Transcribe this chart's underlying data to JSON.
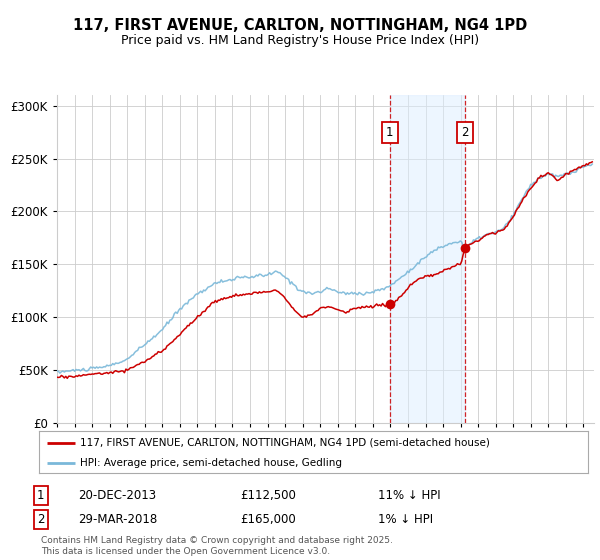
{
  "title1": "117, FIRST AVENUE, CARLTON, NOTTINGHAM, NG4 1PD",
  "title2": "Price paid vs. HM Land Registry's House Price Index (HPI)",
  "bg_color": "#ffffff",
  "plot_bg_color": "#ffffff",
  "grid_color": "#cccccc",
  "hpi_color": "#7ab8d9",
  "price_color": "#cc0000",
  "annotation1_date": "20-DEC-2013",
  "annotation1_price": 112500,
  "annotation1_text": "11% ↓ HPI",
  "annotation2_date": "29-MAR-2018",
  "annotation2_price": 165000,
  "annotation2_text": "1% ↓ HPI",
  "legend1": "117, FIRST AVENUE, CARLTON, NOTTINGHAM, NG4 1PD (semi-detached house)",
  "legend2": "HPI: Average price, semi-detached house, Gedling",
  "footer": "Contains HM Land Registry data © Crown copyright and database right 2025.\nThis data is licensed under the Open Government Licence v3.0.",
  "ylim": [
    0,
    310000
  ],
  "yticks": [
    0,
    50000,
    100000,
    150000,
    200000,
    250000,
    300000
  ],
  "purchase1_year": 2013.96,
  "purchase1_price": 112500,
  "purchase2_year": 2018.25,
  "purchase2_price": 165000,
  "span_color": "#ddeeff",
  "span_alpha": 0.5
}
